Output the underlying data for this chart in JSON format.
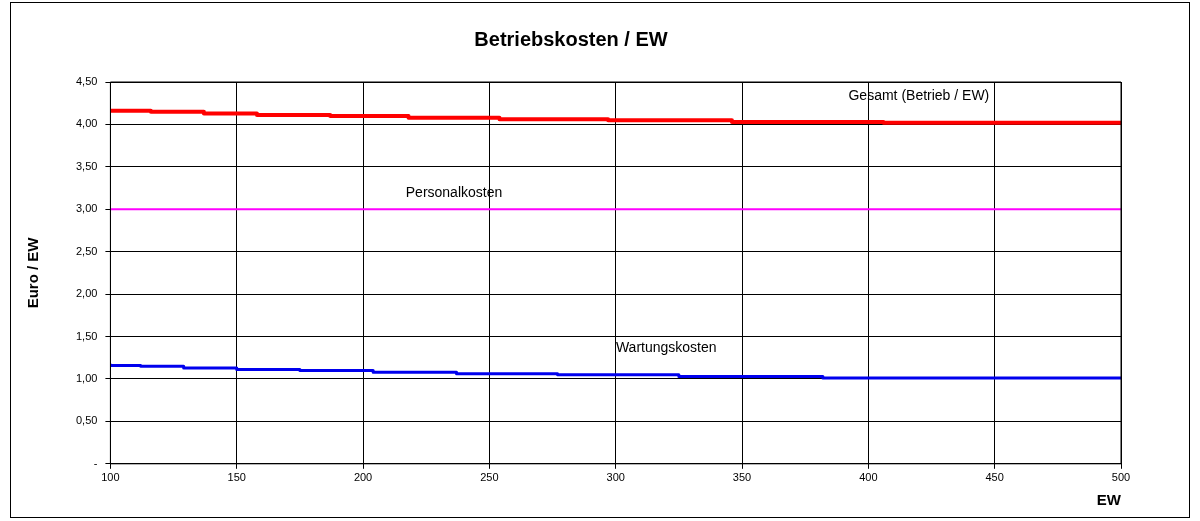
{
  "chart_data": {
    "type": "step",
    "title": "Betriebskosten / EW",
    "xlabel": "EW",
    "ylabel": "Euro / EW",
    "xlim": [
      100,
      500
    ],
    "xticks": [
      100,
      150,
      200,
      250,
      300,
      350,
      400,
      450,
      500
    ],
    "ylim": [
      0,
      4.5
    ],
    "yticks": [
      {
        "value": 0,
        "label": "-"
      },
      {
        "value": 0.5,
        "label": "0,50"
      },
      {
        "value": 1,
        "label": "1,00"
      },
      {
        "value": 1.5,
        "label": "1,50"
      },
      {
        "value": 2,
        "label": "2,00"
      },
      {
        "value": 2.5,
        "label": "2,50"
      },
      {
        "value": 3,
        "label": "3,00"
      },
      {
        "value": 3.5,
        "label": "3,50"
      },
      {
        "value": 4,
        "label": "4,00"
      },
      {
        "value": 4.5,
        "label": "4,50"
      }
    ],
    "grid": true,
    "legend": false,
    "marker": "none",
    "series": [
      {
        "name": "Gesamt (Betrieb / EW)",
        "color": "#ff0000",
        "x": [
          100,
          116,
          137,
          158,
          187,
          218,
          254,
          297,
          346,
          406,
          472,
          500
        ],
        "values": [
          4.18,
          4.16,
          4.15,
          4.13,
          4.11,
          4.1,
          4.08,
          4.06,
          4.05,
          4.03,
          4.02,
          4.02
        ]
      },
      {
        "name": "Personalkosten",
        "type": "line",
        "color": "#ff00ff",
        "x": [
          100,
          500
        ],
        "values": [
          3,
          3
        ]
      },
      {
        "name": "Wartungskosten",
        "color": "#0000ee",
        "x": [
          100,
          112,
          129,
          150,
          175,
          204,
          237,
          277,
          325,
          382,
          451,
          500
        ],
        "values": [
          1.18,
          1.16,
          1.15,
          1.13,
          1.11,
          1.1,
          1.08,
          1.06,
          1.05,
          1.03,
          1.01,
          1.01
        ]
      }
    ]
  }
}
